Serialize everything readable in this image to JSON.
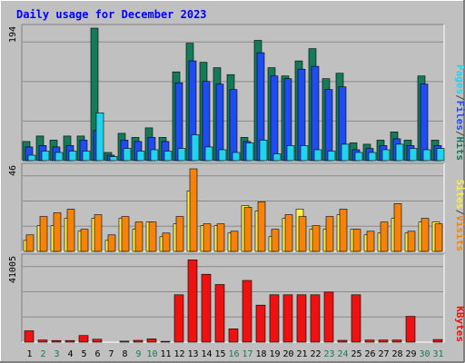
{
  "title": "Daily usage for December 2023",
  "colors": {
    "background": "#c0c0c0",
    "title": "#0000ff",
    "axis_text": "#000000",
    "hits": "#157a5a",
    "files": "#1f4cf0",
    "pages": "#22d3ee",
    "visits": "#f5820a",
    "sites": "#ffee44",
    "kbytes": "#ee1111",
    "weekend_label": "#157a5a"
  },
  "chart_data": [
    {
      "type": "bar",
      "name": "traffic",
      "ymax_label": "194",
      "ylim": [
        0,
        194
      ],
      "legend": [
        "Pages",
        "/",
        "Files",
        "/",
        "Hits"
      ],
      "categories": [
        "1",
        "2",
        "3",
        "4",
        "5",
        "6",
        "7",
        "8",
        "9",
        "10",
        "11",
        "12",
        "13",
        "14",
        "15",
        "16",
        "17",
        "18",
        "19",
        "20",
        "21",
        "22",
        "23",
        "24",
        "25",
        "26",
        "27",
        "28",
        "29",
        "30",
        "31"
      ],
      "series": [
        {
          "name": "Hits",
          "values": [
            28,
            36,
            30,
            36,
            36,
            194,
            12,
            40,
            34,
            48,
            34,
            130,
            172,
            144,
            136,
            126,
            34,
            176,
            136,
            124,
            146,
            164,
            120,
            128,
            26,
            24,
            30,
            42,
            30,
            124,
            30
          ]
        },
        {
          "name": "Files",
          "values": [
            20,
            22,
            20,
            22,
            30,
            44,
            8,
            30,
            28,
            34,
            28,
            114,
            146,
            116,
            112,
            104,
            28,
            158,
            124,
            120,
            134,
            138,
            104,
            108,
            16,
            18,
            22,
            32,
            22,
            112,
            22
          ]
        },
        {
          "name": "Pages",
          "values": [
            8,
            14,
            12,
            14,
            14,
            70,
            6,
            18,
            14,
            16,
            14,
            18,
            38,
            20,
            16,
            12,
            26,
            30,
            10,
            22,
            22,
            16,
            14,
            24,
            12,
            12,
            16,
            24,
            18,
            16,
            18
          ]
        }
      ]
    },
    {
      "type": "bar",
      "name": "visitors",
      "ymax_label": "46",
      "ylim": [
        0,
        46
      ],
      "legend": [
        "Sites",
        "/",
        "Visits"
      ],
      "categories": [
        "1",
        "2",
        "3",
        "4",
        "5",
        "6",
        "7",
        "8",
        "9",
        "10",
        "11",
        "12",
        "13",
        "14",
        "15",
        "16",
        "17",
        "18",
        "19",
        "20",
        "21",
        "22",
        "23",
        "24",
        "25",
        "26",
        "27",
        "28",
        "29",
        "30",
        "31"
      ],
      "series": [
        {
          "name": "Sites",
          "values": [
            6,
            14,
            14,
            18,
            11,
            18,
            6,
            18,
            12,
            16,
            8,
            15,
            33,
            14,
            14,
            10,
            25,
            22,
            8,
            18,
            23,
            12,
            12,
            20,
            12,
            9,
            10,
            18,
            10,
            16,
            16
          ]
        },
        {
          "name": "Visits",
          "values": [
            9,
            19,
            21,
            23,
            12,
            20,
            9,
            19,
            16,
            16,
            10,
            19,
            45,
            15,
            15,
            11,
            24,
            27,
            12,
            20,
            19,
            14,
            19,
            23,
            12,
            11,
            16,
            26,
            11,
            18,
            15
          ]
        }
      ]
    },
    {
      "type": "bar",
      "name": "kbytes",
      "ymax_label": "41005",
      "ylim": [
        0,
        41005
      ],
      "legend": [
        "KBytes"
      ],
      "categories": [
        "1",
        "2",
        "3",
        "4",
        "5",
        "6",
        "7",
        "8",
        "9",
        "10",
        "11",
        "12",
        "13",
        "14",
        "15",
        "16",
        "17",
        "18",
        "19",
        "20",
        "21",
        "22",
        "23",
        "24",
        "25",
        "26",
        "27",
        "28",
        "29",
        "30",
        "31"
      ],
      "series": [
        {
          "name": "KBytes",
          "values": [
            5500,
            1000,
            800,
            800,
            3200,
            1400,
            0,
            500,
            900,
            1600,
            400,
            23000,
            40000,
            33000,
            28000,
            6500,
            30000,
            18000,
            23000,
            23000,
            23000,
            23000,
            24300,
            900,
            23000,
            1000,
            1000,
            1000,
            12500,
            0,
            1300
          ]
        }
      ]
    }
  ],
  "days": [
    {
      "label": "1",
      "weekend": false
    },
    {
      "label": "2",
      "weekend": true
    },
    {
      "label": "3",
      "weekend": true
    },
    {
      "label": "4",
      "weekend": false
    },
    {
      "label": "5",
      "weekend": false
    },
    {
      "label": "6",
      "weekend": false
    },
    {
      "label": "7",
      "weekend": false
    },
    {
      "label": "8",
      "weekend": false
    },
    {
      "label": "9",
      "weekend": true
    },
    {
      "label": "10",
      "weekend": true
    },
    {
      "label": "11",
      "weekend": false
    },
    {
      "label": "12",
      "weekend": false
    },
    {
      "label": "13",
      "weekend": false
    },
    {
      "label": "14",
      "weekend": false
    },
    {
      "label": "15",
      "weekend": false
    },
    {
      "label": "16",
      "weekend": true
    },
    {
      "label": "17",
      "weekend": true
    },
    {
      "label": "18",
      "weekend": false
    },
    {
      "label": "19",
      "weekend": false
    },
    {
      "label": "20",
      "weekend": false
    },
    {
      "label": "21",
      "weekend": false
    },
    {
      "label": "22",
      "weekend": false
    },
    {
      "label": "23",
      "weekend": true
    },
    {
      "label": "24",
      "weekend": true
    },
    {
      "label": "25",
      "weekend": false
    },
    {
      "label": "26",
      "weekend": false
    },
    {
      "label": "27",
      "weekend": false
    },
    {
      "label": "28",
      "weekend": false
    },
    {
      "label": "29",
      "weekend": false
    },
    {
      "label": "30",
      "weekend": true
    },
    {
      "label": "31",
      "weekend": true
    }
  ]
}
